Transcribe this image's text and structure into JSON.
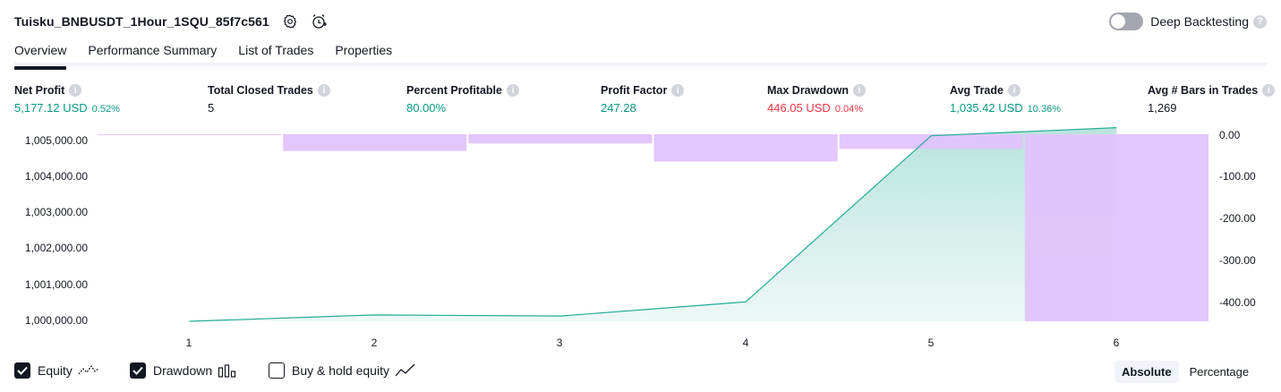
{
  "header": {
    "strategy_title": "Tuisku_BNBUSDT_1Hour_1SQU_85f7c561",
    "deep_backtesting_label": "Deep Backtesting",
    "deep_backtesting_enabled": false
  },
  "tabs": [
    {
      "label": "Overview",
      "active": true
    },
    {
      "label": "Performance Summary",
      "active": false
    },
    {
      "label": "List of Trades",
      "active": false
    },
    {
      "label": "Properties",
      "active": false
    }
  ],
  "metrics": {
    "net_profit": {
      "label": "Net Profit",
      "value": "5,177.12 USD",
      "pct": "0.52%"
    },
    "total_closed_trades": {
      "label": "Total Closed Trades",
      "value": "5"
    },
    "percent_profitable": {
      "label": "Percent Profitable",
      "value": "80.00%"
    },
    "profit_factor": {
      "label": "Profit Factor",
      "value": "247.28"
    },
    "max_drawdown": {
      "label": "Max Drawdown",
      "value": "446.05 USD",
      "pct": "0.04%"
    },
    "avg_trade": {
      "label": "Avg Trade",
      "value": "1,035.42 USD",
      "pct": "10.36%"
    },
    "avg_bars": {
      "label": "Avg # Bars in Trades",
      "value": "1,269"
    }
  },
  "colors": {
    "positive": "#089981",
    "negative": "#f23645",
    "equity_line": "#22ab94",
    "drawdown_bar": "#e1c3fb",
    "text": "#131722"
  },
  "chart_data": {
    "type": "line",
    "x": [
      1,
      2,
      3,
      4,
      5,
      6
    ],
    "x_ticks": [
      "1",
      "2",
      "3",
      "4",
      "5",
      "6"
    ],
    "series": [
      {
        "name": "Equity",
        "axis": "left",
        "values": [
          1000000,
          1000170,
          1000140,
          1000520,
          1004960,
          1005177.12
        ]
      },
      {
        "name": "Drawdown",
        "axis": "right",
        "style": "bar",
        "values": [
          -2,
          -40,
          -22,
          -65,
          -35,
          -446.05
        ]
      }
    ],
    "y_left_ticks": [
      "1,005,000.00",
      "1,004,000.00",
      "1,003,000.00",
      "1,002,000.00",
      "1,001,000.00",
      "1,000,000.00"
    ],
    "y_left_range": [
      1000000,
      1005000
    ],
    "y_right_ticks": [
      "0.00",
      "-100.00",
      "-200.00",
      "-300.00",
      "-400.00"
    ],
    "y_right_range": [
      -446.05,
      0
    ]
  },
  "legend": {
    "equity": {
      "label": "Equity",
      "checked": true
    },
    "drawdown": {
      "label": "Drawdown",
      "checked": true
    },
    "buy_hold": {
      "label": "Buy & hold equity",
      "checked": false
    }
  },
  "view_toggle": {
    "absolute_label": "Absolute",
    "percentage_label": "Percentage",
    "selected": "Absolute"
  }
}
